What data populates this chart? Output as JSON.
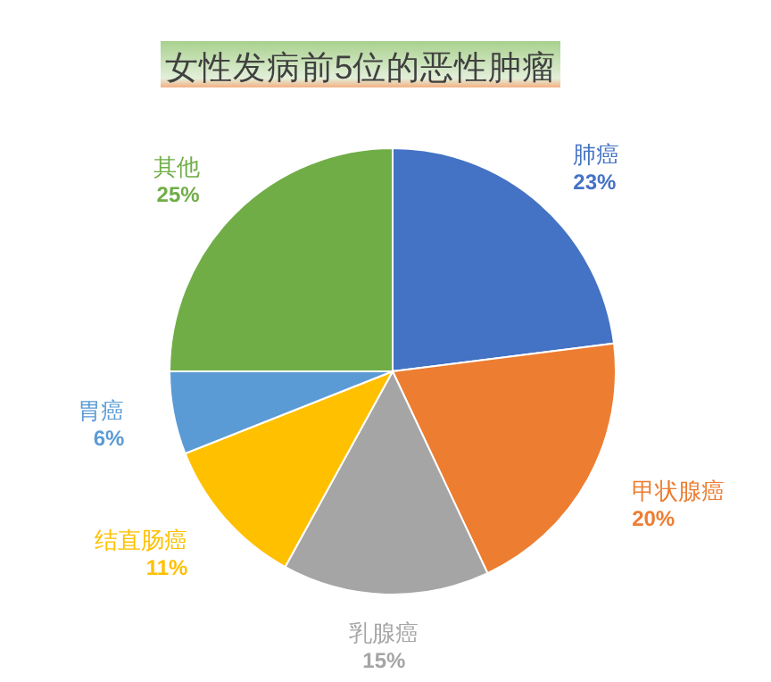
{
  "chart_data": {
    "type": "pie",
    "title": "女性发病前5位的恶性肿瘤",
    "categories": [
      "肺癌",
      "甲状腺癌",
      "乳腺癌",
      "结直肠癌",
      "胃癌",
      "其他"
    ],
    "values": [
      23,
      20,
      15,
      11,
      6,
      25
    ],
    "value_labels": [
      "23%",
      "20%",
      "15%",
      "11%",
      "6%",
      "25%"
    ],
    "colors": [
      "#4472c4",
      "#ed7d31",
      "#a5a5a5",
      "#ffc000",
      "#5b9bd5",
      "#70ad47"
    ]
  }
}
